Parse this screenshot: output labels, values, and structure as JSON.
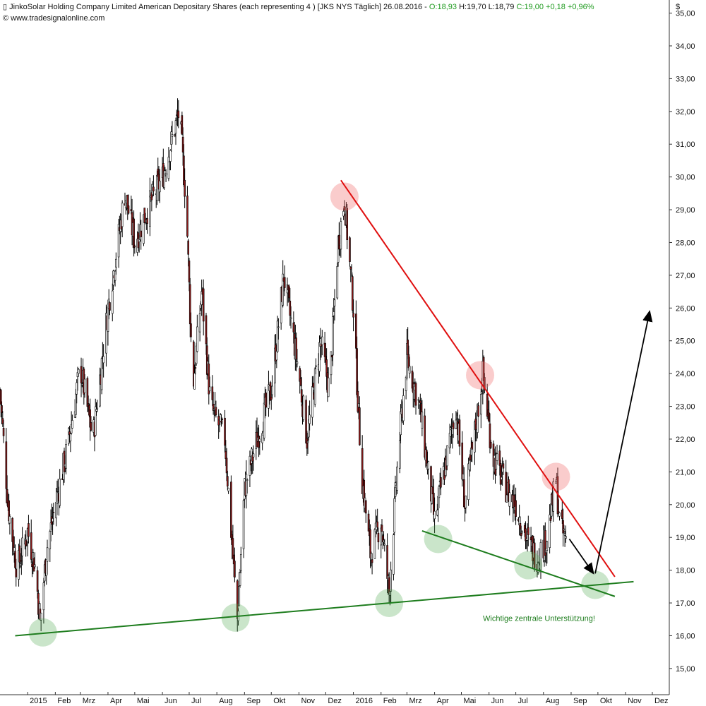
{
  "header": {
    "instrument_icon": "candlestick-icon",
    "name": "JinkoSolar Holding Company Limited American Depositary Shares (each representing 4 )",
    "symbol": "[JKS NYS  Täglich]",
    "date": "26.08.2016 -",
    "open": "O:18,93",
    "high": "H:19,70",
    "low": "L:18,79",
    "close": "C:19,00",
    "change": "+0,18",
    "change_pct": "+0,96%",
    "source_icon": "copyright-icon",
    "source": "www.tradesignalonline.com"
  },
  "colors": {
    "up_candle": "#ffffff",
    "down_candle": "#8b1a1a",
    "resistance_line": "#e01010",
    "support_line": "#1e7d1e",
    "arrow": "#000000",
    "header_green": "#1f9a1f"
  },
  "chart_data": {
    "type": "candlestick",
    "title": "JinkoSolar Holding Company Limited American Depositary Shares (each representing 4 ) [JKS NYS  Täglich]",
    "currency_label": "$",
    "ylim": [
      14.2,
      35.4
    ],
    "y_ticks": [
      "15,00",
      "16,00",
      "17,00",
      "18,00",
      "19,00",
      "20,00",
      "21,00",
      "22,00",
      "23,00",
      "24,00",
      "25,00",
      "26,00",
      "27,00",
      "28,00",
      "29,00",
      "30,00",
      "31,00",
      "32,00",
      "33,00",
      "34,00",
      "35,00"
    ],
    "y_tick_values": [
      15,
      16,
      17,
      18,
      19,
      20,
      21,
      22,
      23,
      24,
      25,
      26,
      27,
      28,
      29,
      30,
      31,
      32,
      33,
      34,
      35
    ],
    "x_ticks": [
      {
        "label": "2015",
        "date": "2015-01-01"
      },
      {
        "label": "Feb",
        "date": "2015-02-01"
      },
      {
        "label": "Mrz",
        "date": "2015-03-01"
      },
      {
        "label": "Apr",
        "date": "2015-04-01"
      },
      {
        "label": "Mai",
        "date": "2015-05-01"
      },
      {
        "label": "Jun",
        "date": "2015-06-01"
      },
      {
        "label": "Jul",
        "date": "2015-07-01"
      },
      {
        "label": "Aug",
        "date": "2015-08-01"
      },
      {
        "label": "Sep",
        "date": "2015-09-01"
      },
      {
        "label": "Okt",
        "date": "2015-10-01"
      },
      {
        "label": "Nov",
        "date": "2015-11-01"
      },
      {
        "label": "Dez",
        "date": "2015-12-01"
      },
      {
        "label": "2016",
        "date": "2016-01-01"
      },
      {
        "label": "Feb",
        "date": "2016-02-01"
      },
      {
        "label": "Mrz",
        "date": "2016-03-01"
      },
      {
        "label": "Apr",
        "date": "2016-04-01"
      },
      {
        "label": "Mai",
        "date": "2016-05-01"
      },
      {
        "label": "Jun",
        "date": "2016-06-01"
      },
      {
        "label": "Jul",
        "date": "2016-07-01"
      },
      {
        "label": "Aug",
        "date": "2016-08-01"
      },
      {
        "label": "Sep",
        "date": "2016-09-01"
      },
      {
        "label": "Okt",
        "date": "2016-10-01"
      },
      {
        "label": "Nov",
        "date": "2016-11-01"
      },
      {
        "label": "Dez",
        "date": "2016-12-01"
      }
    ],
    "x_range": [
      "2014-12-01",
      "2016-12-20"
    ],
    "price_path": [
      {
        "date": "2014-12-01",
        "close": 23.5
      },
      {
        "date": "2014-12-10",
        "close": 20.0
      },
      {
        "date": "2014-12-20",
        "close": 18.0
      },
      {
        "date": "2015-01-01",
        "close": 19.2
      },
      {
        "date": "2015-01-10",
        "close": 18.0
      },
      {
        "date": "2015-01-15",
        "close": 16.4
      },
      {
        "date": "2015-01-22",
        "close": 18.6
      },
      {
        "date": "2015-02-01",
        "close": 20.0
      },
      {
        "date": "2015-02-15",
        "close": 21.8
      },
      {
        "date": "2015-03-01",
        "close": 24.2
      },
      {
        "date": "2015-03-15",
        "close": 22.0
      },
      {
        "date": "2015-04-01",
        "close": 26.0
      },
      {
        "date": "2015-04-20",
        "close": 29.5
      },
      {
        "date": "2015-05-01",
        "close": 28.0
      },
      {
        "date": "2015-05-15",
        "close": 29.0
      },
      {
        "date": "2015-06-01",
        "close": 30.0
      },
      {
        "date": "2015-06-15",
        "close": 31.5
      },
      {
        "date": "2015-06-20",
        "close": 32.0
      },
      {
        "date": "2015-06-28",
        "close": 29.0
      },
      {
        "date": "2015-07-05",
        "close": 23.5
      },
      {
        "date": "2015-07-15",
        "close": 26.5
      },
      {
        "date": "2015-07-25",
        "close": 23.0
      },
      {
        "date": "2015-08-10",
        "close": 22.0
      },
      {
        "date": "2015-08-20",
        "close": 18.0
      },
      {
        "date": "2015-08-24",
        "close": 16.5
      },
      {
        "date": "2015-09-01",
        "close": 20.5
      },
      {
        "date": "2015-09-15",
        "close": 22.0
      },
      {
        "date": "2015-10-01",
        "close": 23.5
      },
      {
        "date": "2015-10-15",
        "close": 27.0
      },
      {
        "date": "2015-11-01",
        "close": 24.0
      },
      {
        "date": "2015-11-10",
        "close": 22.0
      },
      {
        "date": "2015-11-25",
        "close": 25.0
      },
      {
        "date": "2015-12-05",
        "close": 23.5
      },
      {
        "date": "2015-12-15",
        "close": 28.0
      },
      {
        "date": "2015-12-22",
        "close": 29.3
      },
      {
        "date": "2016-01-01",
        "close": 26.0
      },
      {
        "date": "2016-01-10",
        "close": 21.0
      },
      {
        "date": "2016-01-20",
        "close": 18.5
      },
      {
        "date": "2016-02-01",
        "close": 19.5
      },
      {
        "date": "2016-02-10",
        "close": 17.3
      },
      {
        "date": "2016-02-20",
        "close": 21.5
      },
      {
        "date": "2016-03-01",
        "close": 24.5
      },
      {
        "date": "2016-03-15",
        "close": 23.0
      },
      {
        "date": "2016-04-01",
        "close": 19.5
      },
      {
        "date": "2016-04-15",
        "close": 21.5
      },
      {
        "date": "2016-04-25",
        "close": 23.0
      },
      {
        "date": "2016-05-05",
        "close": 20.0
      },
      {
        "date": "2016-05-15",
        "close": 22.0
      },
      {
        "date": "2016-05-25",
        "close": 24.0
      },
      {
        "date": "2016-06-05",
        "close": 21.5
      },
      {
        "date": "2016-06-20",
        "close": 20.5
      },
      {
        "date": "2016-07-01",
        "close": 20.0
      },
      {
        "date": "2016-07-15",
        "close": 18.8
      },
      {
        "date": "2016-07-25",
        "close": 18.4
      },
      {
        "date": "2016-08-05",
        "close": 19.0
      },
      {
        "date": "2016-08-15",
        "close": 20.8
      },
      {
        "date": "2016-08-20",
        "close": 19.2
      },
      {
        "date": "2016-08-26",
        "close": 19.0
      }
    ],
    "trendlines": [
      {
        "type": "resistance",
        "color": "#e01010",
        "from": {
          "date": "2015-12-18",
          "price": 29.9
        },
        "to": {
          "date": "2016-10-20",
          "price": 17.8
        }
      },
      {
        "type": "support",
        "color": "#1e7d1e",
        "from": {
          "date": "2014-12-18",
          "price": 16.0
        },
        "to": {
          "date": "2016-11-10",
          "price": 17.65
        }
      },
      {
        "type": "support",
        "color": "#1e7d1e",
        "from": {
          "date": "2016-03-18",
          "price": 19.2
        },
        "to": {
          "date": "2016-10-20",
          "price": 17.2
        }
      }
    ],
    "markers": [
      {
        "kind": "high",
        "date": "2015-12-22",
        "price": 29.4
      },
      {
        "kind": "high",
        "date": "2016-05-22",
        "price": 23.95
      },
      {
        "kind": "high",
        "date": "2016-08-15",
        "price": 20.85
      },
      {
        "kind": "low",
        "date": "2015-01-18",
        "price": 16.1
      },
      {
        "kind": "low",
        "date": "2015-08-22",
        "price": 16.55
      },
      {
        "kind": "low",
        "date": "2016-02-10",
        "price": 17.0
      },
      {
        "kind": "low",
        "date": "2016-04-05",
        "price": 18.95
      },
      {
        "kind": "low",
        "date": "2016-07-15",
        "price": 18.15
      },
      {
        "kind": "low",
        "date": "2016-09-28",
        "price": 17.55
      }
    ],
    "arrows": [
      {
        "from": {
          "date": "2016-08-30",
          "price": 18.95
        },
        "to": {
          "date": "2016-09-26",
          "price": 17.9
        }
      },
      {
        "from": {
          "date": "2016-09-28",
          "price": 17.9
        },
        "to": {
          "date": "2016-11-28",
          "price": 25.9
        }
      }
    ],
    "annotation": "Wichtige zentrale Unterstützung!"
  }
}
